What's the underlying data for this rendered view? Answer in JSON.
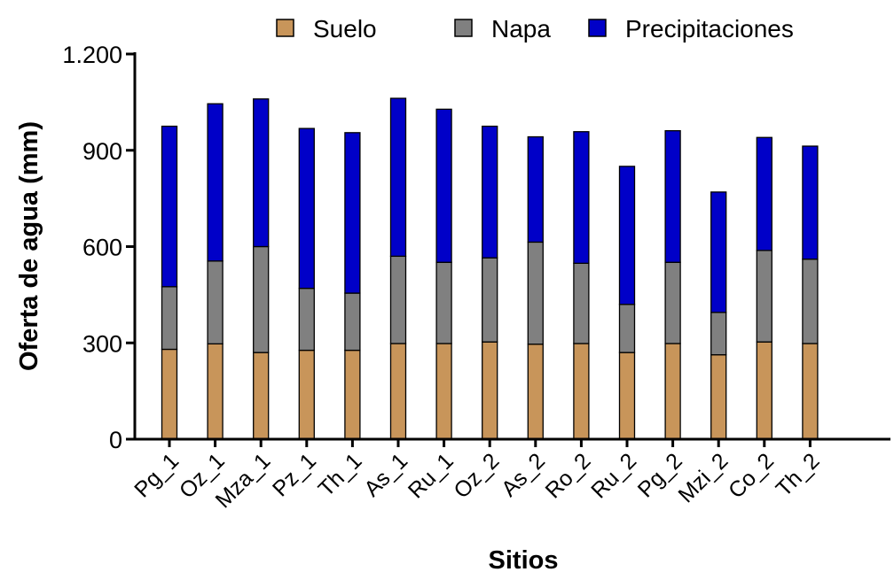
{
  "chart_data": {
    "type": "bar",
    "stacked": true,
    "title": "",
    "xlabel": "Sitios",
    "ylabel": "Oferta de agua (mm)",
    "ylim": [
      0,
      1200
    ],
    "yticks": [
      0,
      300,
      600,
      900,
      1200
    ],
    "ytick_labels": [
      "0",
      "300",
      "600",
      "900",
      "1.200"
    ],
    "grid": false,
    "legend_position": "top",
    "categories": [
      "Pg_1",
      "Oz_1",
      "Mza_1",
      "Pz_1",
      "Th_1",
      "As_1",
      "Ru_1",
      "Oz_2",
      "As_2",
      "Ro_2",
      "Ru_2",
      "Pg_2",
      "Mzi_2",
      "Co_2",
      "Th_2"
    ],
    "series": [
      {
        "name": "Suelo",
        "color": "#c8955a",
        "values": [
          280,
          297,
          270,
          277,
          277,
          298,
          298,
          303,
          296,
          298,
          270,
          298,
          263,
          303,
          298
        ]
      },
      {
        "name": "Napa",
        "color": "#808080",
        "values": [
          195,
          258,
          330,
          193,
          178,
          272,
          253,
          262,
          318,
          250,
          150,
          253,
          132,
          285,
          263
        ]
      },
      {
        "name": "Precipitaciones",
        "color": "#0000c8",
        "values": [
          500,
          490,
          460,
          498,
          500,
          492,
          477,
          410,
          328,
          410,
          430,
          410,
          375,
          352,
          352
        ]
      }
    ]
  }
}
